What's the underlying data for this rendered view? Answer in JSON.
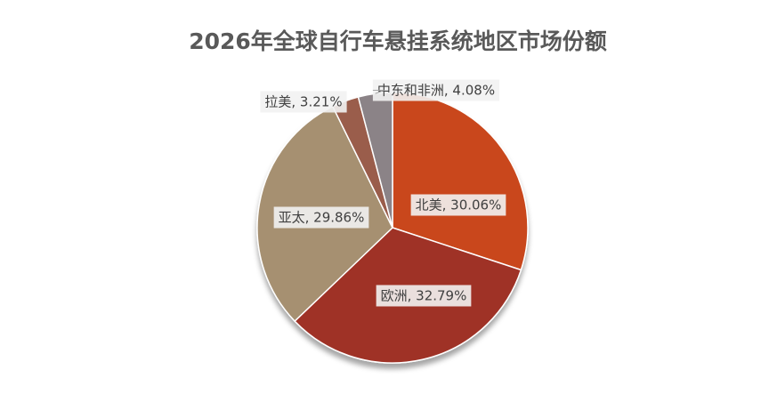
{
  "chart_data": {
    "type": "pie",
    "title": "2026年全球自行车悬挂系统地区市场份额",
    "values": [
      30.06,
      32.79,
      29.86,
      3.21,
      4.08
    ],
    "value_labels": [
      "北美, 30.06%",
      "欧洲, 32.79%",
      "亚太, 29.86%",
      "拉美, 3.21%",
      "中东和非洲, 4.08%"
    ],
    "colors": [
      "#c9471d",
      "#9f3228",
      "#a69071",
      "#9a5d4c",
      "#8b8387"
    ]
  }
}
